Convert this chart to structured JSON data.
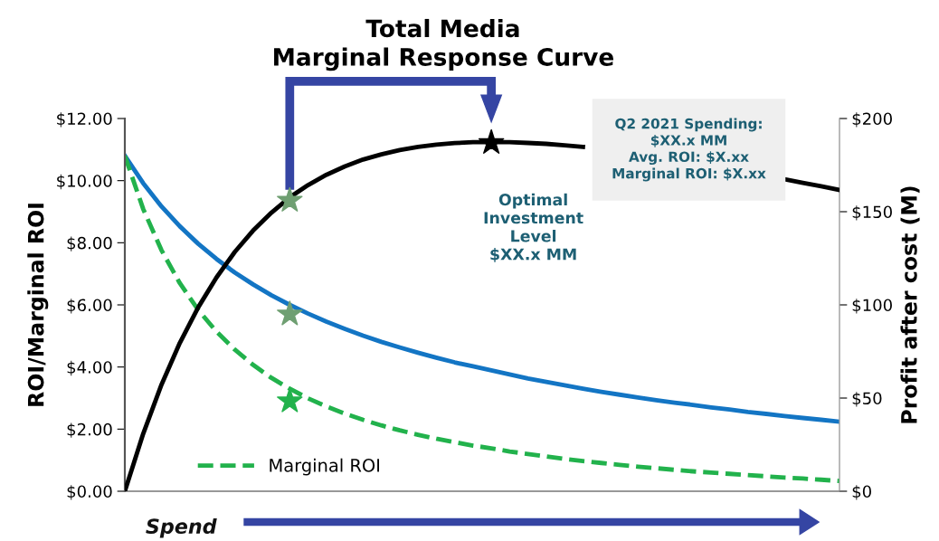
{
  "chart_data": {
    "type": "line",
    "title": "Total Media\nMarginal Response Curve",
    "ylabel": "ROI/Marginal ROI",
    "y2label": "Profit after cost (M)",
    "categories": [
      null,
      null,
      null,
      null,
      null,
      null,
      null,
      null,
      null,
      null,
      null,
      null,
      null,
      null,
      null,
      null,
      null,
      null,
      null,
      null,
      null,
      null,
      null,
      null,
      null,
      null,
      null,
      null,
      null,
      null,
      null,
      null,
      null,
      null,
      null,
      null,
      null,
      null,
      null,
      null
    ],
    "series": [
      {
        "color": "#1375c4",
        "line_style": "solid",
        "values": [
          10.8,
          9.92,
          9.17,
          8.53,
          7.97,
          7.48,
          7.04,
          6.66,
          6.31,
          6.0,
          5.72,
          5.46,
          5.23,
          5.01,
          4.81,
          4.63,
          4.46,
          4.3,
          4.15,
          4.02,
          3.89,
          3.76,
          3.63,
          3.52,
          3.41,
          3.3,
          3.2,
          3.11,
          3.02,
          2.93,
          2.85,
          2.78,
          2.7,
          2.63,
          2.55,
          2.49,
          2.42,
          2.36,
          2.3,
          2.24
        ]
      },
      {
        "name": "Marginal ROI",
        "color": "#22b24c",
        "line_style": "dashed",
        "values": [
          10.8,
          9.09,
          7.76,
          6.7,
          5.84,
          5.14,
          4.56,
          4.07,
          3.65,
          3.3,
          2.99,
          2.73,
          2.5,
          2.3,
          2.12,
          1.96,
          1.82,
          1.69,
          1.58,
          1.47,
          1.38,
          1.28,
          1.2,
          1.12,
          1.04,
          0.97,
          0.91,
          0.85,
          0.79,
          0.74,
          0.69,
          0.64,
          0.6,
          0.56,
          0.52,
          0.48,
          0.44,
          0.41,
          0.37,
          0.33
        ]
      },
      {
        "axis": "y2",
        "color": "#000000",
        "line_style": "solid",
        "values": [
          0,
          30.8,
          57.2,
          79.6,
          98.6,
          114.7,
          128.4,
          139.9,
          149.5,
          157.7,
          164.3,
          169.8,
          174.3,
          178.0,
          180.8,
          183.1,
          184.8,
          186.0,
          186.8,
          187.3,
          187.3,
          187.3,
          186.9,
          186.4,
          185.6,
          184.8,
          null,
          null,
          null,
          null,
          null,
          null,
          null,
          null,
          null,
          null,
          167.4,
          165.5,
          163.7,
          161.7
        ]
      },
      {
        "type": "scatter",
        "marker": "star",
        "color": "#6f9f72",
        "values": [
          null,
          null,
          null,
          null,
          null,
          null,
          null,
          null,
          null,
          5.7,
          null,
          null,
          null,
          null,
          null,
          null,
          null,
          null,
          null,
          null,
          null,
          null,
          null,
          null,
          null,
          null,
          null,
          null,
          null,
          null,
          null,
          null,
          null,
          null,
          null,
          null,
          null,
          null,
          null,
          null
        ]
      },
      {
        "type": "scatter",
        "marker": "star",
        "color": "#22b24c",
        "values": [
          null,
          null,
          null,
          null,
          null,
          null,
          null,
          null,
          null,
          2.9,
          null,
          null,
          null,
          null,
          null,
          null,
          null,
          null,
          null,
          null,
          null,
          null,
          null,
          null,
          null,
          null,
          null,
          null,
          null,
          null,
          null,
          null,
          null,
          null,
          null,
          null,
          null,
          null,
          null,
          null
        ]
      },
      {
        "type": "scatter",
        "marker": "star",
        "axis": "y2",
        "color": "#6f9f72",
        "values": [
          null,
          null,
          null,
          null,
          null,
          null,
          null,
          null,
          null,
          156,
          null,
          null,
          null,
          null,
          null,
          null,
          null,
          null,
          null,
          null,
          null,
          null,
          null,
          null,
          null,
          null,
          null,
          null,
          null,
          null,
          null,
          null,
          null,
          null,
          null,
          null,
          null,
          null,
          null,
          null
        ]
      },
      {
        "type": "scatter",
        "marker": "star",
        "axis": "y2",
        "color": "#000000",
        "values": [
          null,
          null,
          null,
          null,
          null,
          null,
          null,
          null,
          null,
          null,
          null,
          null,
          null,
          null,
          null,
          null,
          null,
          null,
          null,
          null,
          187,
          null,
          null,
          null,
          null,
          null,
          null,
          null,
          null,
          null,
          null,
          null,
          null,
          null,
          null,
          null,
          null,
          null,
          null,
          null
        ]
      }
    ],
    "ylim": [
      0,
      12
    ],
    "yticks": [
      {
        "value": 0,
        "label": "$0.00"
      },
      {
        "value": 2,
        "label": "$2.00"
      },
      {
        "value": 4,
        "label": "$4.00"
      },
      {
        "value": 6,
        "label": "$6.00"
      },
      {
        "value": 8,
        "label": "$8.00"
      },
      {
        "value": 10,
        "label": "$10.00"
      },
      {
        "value": 12,
        "label": "$12.00"
      }
    ],
    "y2lim": [
      0,
      200
    ],
    "y2ticks": [
      {
        "value": 0,
        "label": "$0"
      },
      {
        "value": 50,
        "label": "$50"
      },
      {
        "value": 100,
        "label": "$100"
      },
      {
        "value": 150,
        "label": "$150"
      },
      {
        "value": 200,
        "label": "$200"
      }
    ],
    "annotations": [
      "Optimal\nInvestment\nLevel\n$XX.x MM",
      "Q2 2021 Spending:\n$XX.x MM\nAvg. ROI: $X.xx\nMarginal ROI: $X.xx",
      "Spend"
    ],
    "legend": "bottom left",
    "tick_labels": "y",
    "grid": false
  }
}
